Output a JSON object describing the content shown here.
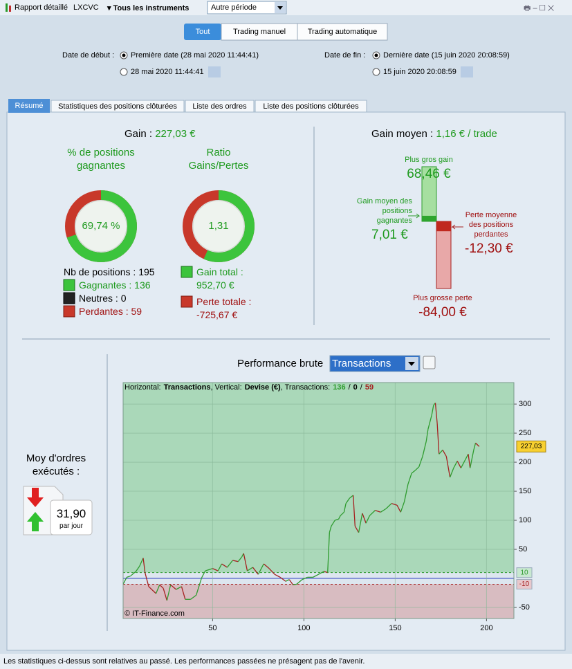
{
  "toolbar": {
    "report": "Rapport détaillé",
    "account": "LXCVC",
    "instruments": "Tous les instruments",
    "period": "Autre période"
  },
  "filters": {
    "modes": [
      "Tout",
      "Trading manuel",
      "Trading automatique"
    ],
    "start_label": "Date de début :",
    "start_first": "Première date (28 mai 2020 11:44:41)",
    "start_date": "28 mai 2020 11:44:41",
    "end_label": "Date de fin :",
    "end_last": "Dernière date (15 juin 2020 20:08:59)",
    "end_date": "15 juin 2020 20:08:59"
  },
  "tabs": [
    "Résumé",
    "Statistiques des positions clôturées",
    "Liste des ordres",
    "Liste des positions clôturées"
  ],
  "summary": {
    "gain_label": "Gain :",
    "gain": "227,03 €",
    "win_rate_title": "% de positions gagnantes",
    "win_rate": {
      "value": 69.74,
      "label": "69,74 %"
    },
    "ratio_title": "Ratio Gains/Pertes",
    "ratio": {
      "value": 1.31,
      "label": "1,31"
    },
    "positions_label": "Nb de positions :",
    "positions": 195,
    "winning_label": "Gagnantes :",
    "winning": 136,
    "neutral_label": "Neutres :",
    "neutral": 0,
    "losing_label": "Perdantes :",
    "losing": 59,
    "total_gain_label": "Gain total :",
    "total_gain": "952,70 €",
    "total_loss_label": "Perte totale :",
    "total_loss": "-725,67 €"
  },
  "average": {
    "label": "Gain moyen :",
    "value": "1,16 € / trade",
    "max_gain_label": "Plus gros gain",
    "max_gain": {
      "value": 68.46,
      "label": "68,46 €"
    },
    "avg_win_label": "Gain moyen des positions gagnantes",
    "avg_win": {
      "value": 7.01,
      "label": "7,01 €"
    },
    "avg_loss_label": "Perte moyenne des positions perdantes",
    "avg_loss": {
      "value": -12.3,
      "label": "-12,30 €"
    },
    "max_loss_label": "Plus grosse perte",
    "max_loss": {
      "value": -84,
      "label": "-84,00 €"
    }
  },
  "orders": {
    "label": "Moy d'ordres exécutés :",
    "value": "31,90",
    "unit": "par jour"
  },
  "chart_data": {
    "type": "line",
    "title": "Performance brute",
    "selector": "Transactions",
    "header": {
      "h_label": "Horizontal:",
      "h_value": "Transactions",
      "v_label": ", Vertical:",
      "v_value": "Devise (€)",
      "t_label": ", Transactions:",
      "wins": 136,
      "sep": "/",
      "neutral": 0,
      "losses": 59
    },
    "copyright": "© IT-Finance.com",
    "x": [
      1,
      3,
      5,
      8,
      10,
      12,
      13,
      15,
      17,
      19,
      21,
      23,
      25,
      27,
      30,
      33,
      35,
      38,
      41,
      44,
      46,
      50,
      53,
      55,
      58,
      61,
      64,
      66,
      67,
      69,
      72,
      75,
      78,
      81,
      84,
      87,
      90,
      92,
      94,
      96,
      99,
      102,
      105,
      108,
      111,
      113,
      114,
      115,
      117,
      119,
      120,
      122,
      123,
      125,
      127,
      128,
      130,
      132,
      134,
      136,
      139,
      142,
      145,
      148,
      151,
      153,
      155,
      157,
      159,
      161,
      163,
      165,
      167,
      168,
      170,
      171,
      172,
      173,
      174,
      176,
      178,
      180,
      182,
      184,
      186,
      188,
      190,
      191,
      193,
      194,
      196
    ],
    "series": [
      {
        "color": "#2e9b2e",
        "down_color": "#a52020",
        "values": [
          -10,
          2,
          4,
          12,
          21,
          35,
          10,
          -14,
          -20,
          -26,
          -11,
          -17,
          -38,
          -11,
          -19,
          -14,
          -36,
          -36,
          -29,
          1,
          13,
          17,
          13,
          25,
          19,
          31,
          29,
          37,
          43,
          13,
          19,
          7,
          25,
          17,
          7,
          2,
          -5,
          -2,
          -11,
          -10,
          -2,
          2,
          2,
          7,
          12,
          10,
          79,
          90,
          100,
          102,
          108,
          114,
          129,
          138,
          143,
          90,
          79,
          112,
          95,
          108,
          117,
          114,
          120,
          129,
          126,
          114,
          132,
          162,
          181,
          186,
          192,
          210,
          236,
          257,
          281,
          298,
          302,
          267,
          214,
          221,
          210,
          174,
          190,
          202,
          190,
          202,
          214,
          190,
          221,
          233,
          227.03
        ]
      }
    ],
    "xlim": [
      1,
      215
    ],
    "ylim": [
      -69,
      337
    ],
    "xticks": [
      50,
      100,
      150,
      200
    ],
    "yticks": [
      -50,
      50,
      100,
      150,
      200,
      250,
      300
    ],
    "grid": true,
    "bands": [
      10,
      -10
    ],
    "last": {
      "value": 227.03,
      "label": "227,03"
    }
  },
  "footer": "Les statistiques ci-dessus sont relatives au passé. Les performances passées ne présagent pas de l'avenir."
}
